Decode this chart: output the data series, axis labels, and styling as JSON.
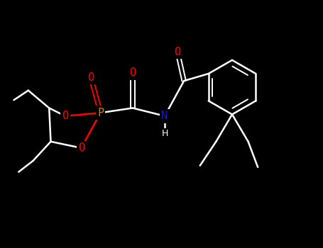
{
  "background_color": "#000000",
  "bond_color": "#ffffff",
  "atom_colors": {
    "O": "#ff0000",
    "N": "#1a1aaa",
    "P": "#b8860b",
    "C": "#999999",
    "H": "#ffffff"
  },
  "figsize": [
    4.55,
    3.5
  ],
  "dpi": 100
}
